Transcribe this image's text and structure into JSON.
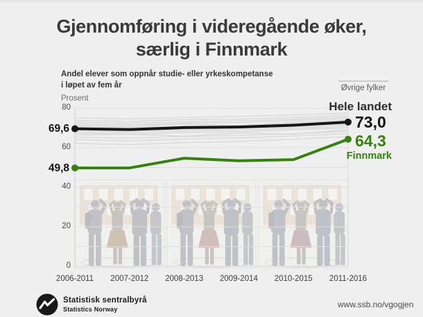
{
  "title": {
    "line1": "Gjennomføring i videregående øker,",
    "line2": "særlig i Finnmark"
  },
  "subtitle": {
    "line1": "Andel elever som oppnår studie- eller yrkeskompetanse",
    "line2": "i løpet av fem år"
  },
  "footer": {
    "org_no": "Statistisk sentralbyrå",
    "org_en": "Statistics Norway",
    "url": "www.ssb.no/vgogjen"
  },
  "colors": {
    "finnmark_green": "#35830d",
    "hele_landet_black": "#161616",
    "other_counties_gray": "#d6d6d6",
    "background": "#efefef"
  },
  "chart_data": {
    "type": "line",
    "categories": [
      "2006-2011",
      "2007-2012",
      "2008-2013",
      "2009-2014",
      "2010-2015",
      "2011-2016"
    ],
    "ylabel": "Prosent",
    "ylim": [
      0,
      80
    ],
    "yticks": [
      80,
      60,
      40,
      20,
      0
    ],
    "grid": "horizontal, every 10, light gray",
    "legend_position": "inline right labels",
    "series": [
      {
        "name": "Hele landet",
        "color": "#161616",
        "values": [
          69.6,
          69.2,
          70.2,
          70.5,
          71.4,
          73.0
        ],
        "endpoint_dots": true,
        "label_start": "69,6",
        "label_end": "73,0"
      },
      {
        "name": "Finnmark",
        "color": "#35830d",
        "values": [
          49.8,
          49.8,
          54.7,
          53.4,
          54.0,
          64.3
        ],
        "endpoint_dots": true,
        "label_start": "49,8",
        "label_end": "64,3"
      },
      {
        "name": "Øvrige fylker",
        "color": "#d6d6d6",
        "lines": [
          [
            75.2,
            74.6,
            75.3,
            75.9,
            76.6,
            77.5
          ],
          [
            73.9,
            73.3,
            74.2,
            74.5,
            75.3,
            76.4
          ],
          [
            73.0,
            72.4,
            73.1,
            73.6,
            74.4,
            75.6
          ],
          [
            72.2,
            71.5,
            72.4,
            72.8,
            73.7,
            74.9
          ],
          [
            71.4,
            70.7,
            72.1,
            71.2,
            72.8,
            74.0
          ],
          [
            70.7,
            70.1,
            70.9,
            71.3,
            72.1,
            73.3
          ],
          [
            70.0,
            69.4,
            70.2,
            70.6,
            71.4,
            72.6
          ],
          [
            69.1,
            68.5,
            69.3,
            69.8,
            70.6,
            71.8
          ],
          [
            68.3,
            67.7,
            68.5,
            69.0,
            69.8,
            71.0
          ],
          [
            67.4,
            66.8,
            67.7,
            68.1,
            69.0,
            70.1
          ],
          [
            66.5,
            66.9,
            65.8,
            67.5,
            66.8,
            69.2
          ],
          [
            65.4,
            64.8,
            65.7,
            66.2,
            67.1,
            68.4
          ],
          [
            64.1,
            63.5,
            64.4,
            65.0,
            65.9,
            67.2
          ],
          [
            62.2,
            61.6,
            62.6,
            63.2,
            64.3,
            65.7
          ]
        ]
      }
    ]
  }
}
